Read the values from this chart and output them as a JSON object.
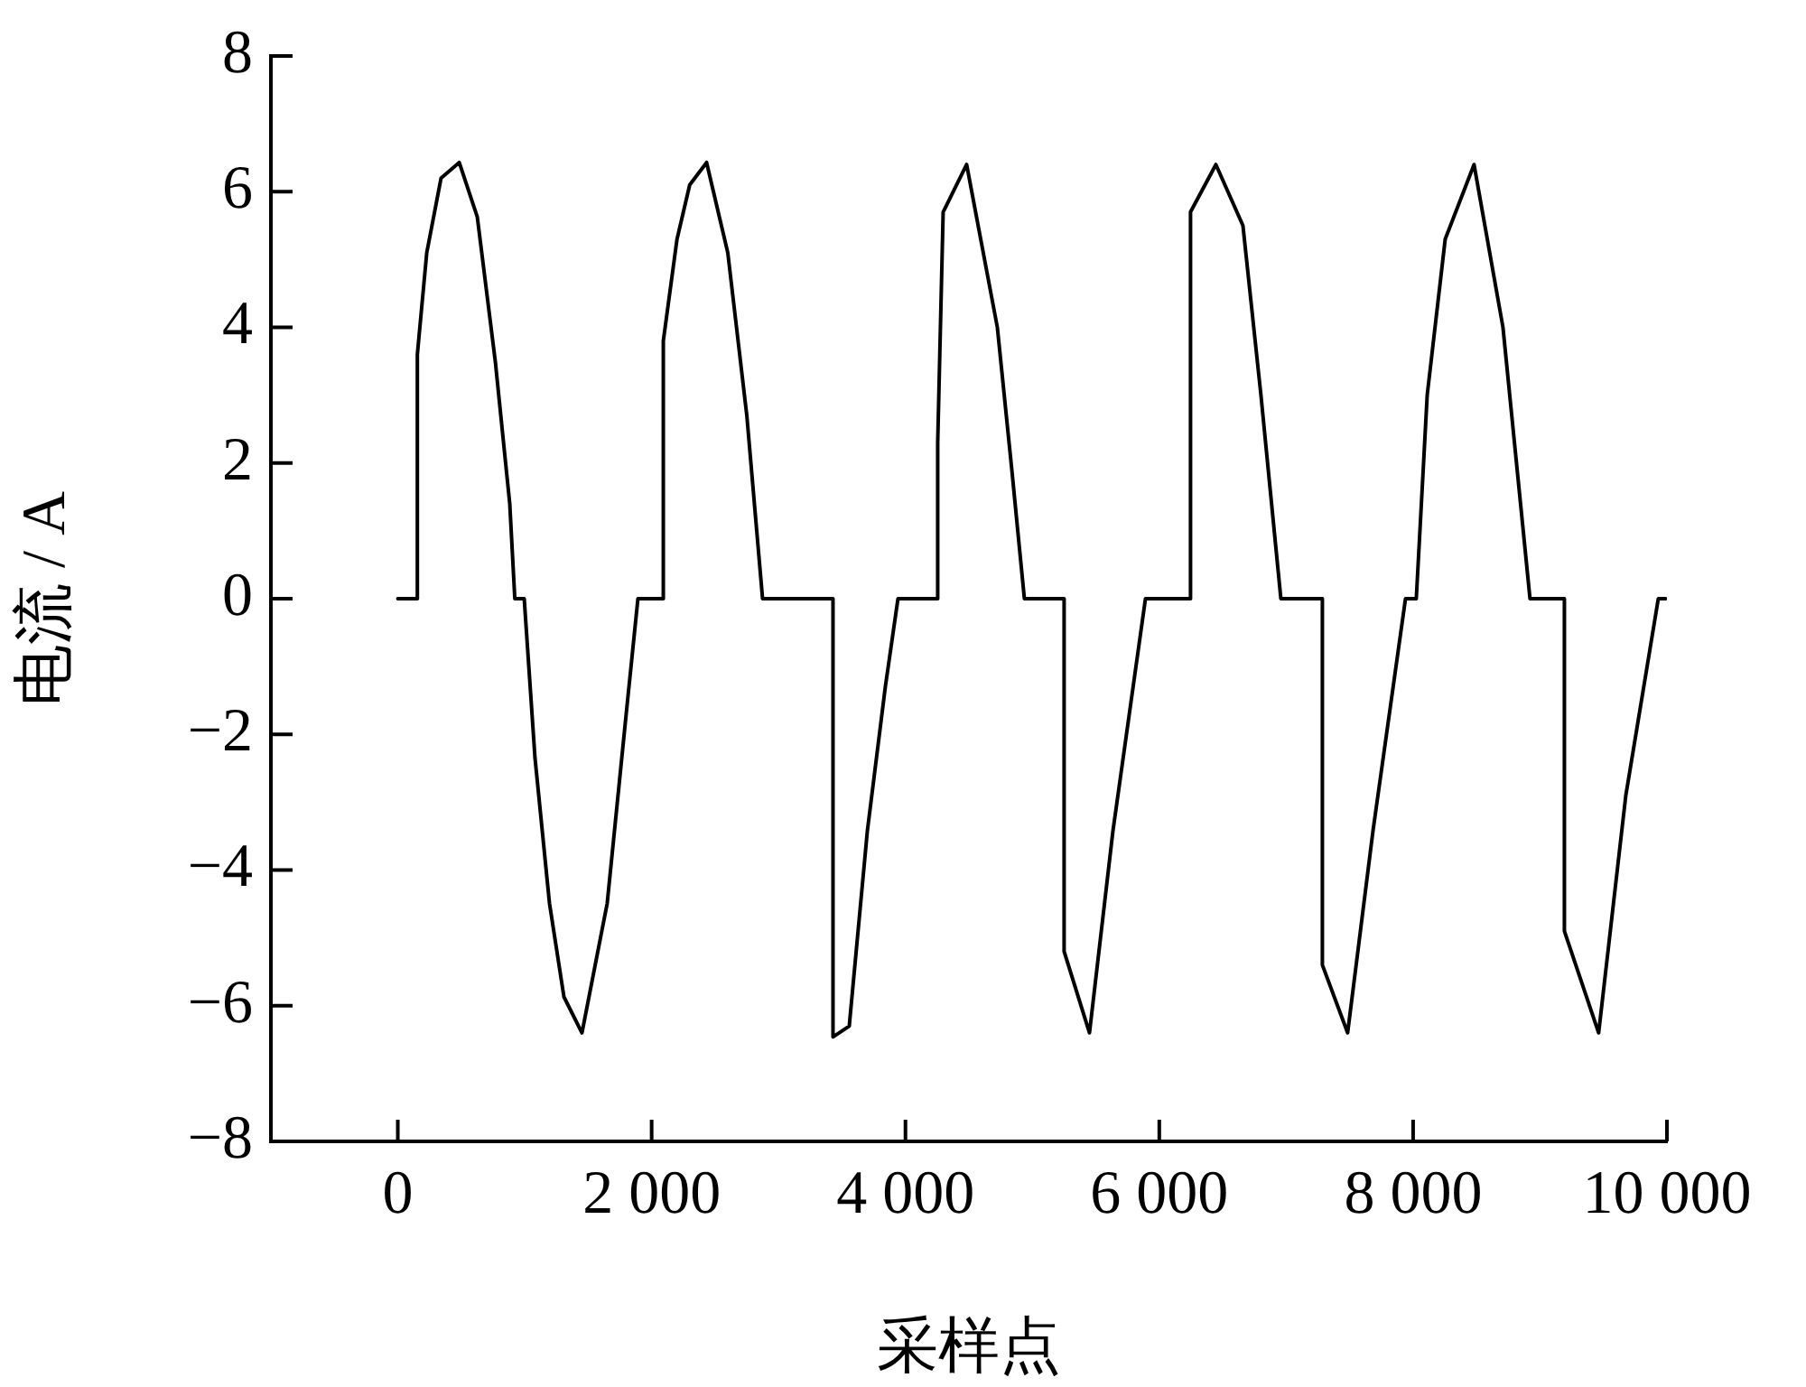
{
  "chart_data": {
    "type": "line",
    "xlabel": "采样点",
    "ylabel": "电流 / A",
    "xlim": [
      -1000,
      10000
    ],
    "xticks": [
      0,
      {
        "value": 2000,
        "label": "2 000"
      },
      {
        "value": 4000,
        "label": "4 000"
      },
      {
        "value": 6000,
        "label": "6 000"
      },
      {
        "value": 8000,
        "label": "8 000"
      },
      {
        "value": 10000,
        "label": "10 000"
      }
    ],
    "ylim": [
      -8,
      8
    ],
    "yticks": [
      {
        "value": -8,
        "label": "−8"
      },
      {
        "value": -6,
        "label": "−6"
      },
      {
        "value": -4,
        "label": "−4"
      },
      {
        "value": -2,
        "label": "−2"
      },
      0,
      2,
      4,
      6,
      8
    ],
    "grid": false,
    "legend": false,
    "marker": "none",
    "line_style": "solid",
    "series": [
      {
        "color": "#000000",
        "x": [
          0,
          154,
          154,
          228,
          341,
          484,
          626,
          768,
          882,
          922,
          996,
          1081,
          1195,
          1309,
          1451,
          1650,
          1793,
          1892,
          2092,
          2092,
          2200,
          2300,
          2433,
          2600,
          2750,
          2874,
          3429,
          3429,
          3557,
          3700,
          3842,
          3941,
          4254,
          4254,
          4297,
          4482,
          4724,
          4838,
          4937,
          5250,
          5250,
          5450,
          5635,
          5891,
          6246,
          6246,
          6446,
          6659,
          6801,
          6958,
          7285,
          7285,
          7484,
          7684,
          7940,
          8025,
          8111,
          8253,
          8480,
          8708,
          8921,
          9192,
          9192,
          9462,
          9676,
          9932,
          9990
        ],
        "values": [
          0,
          0,
          3.6,
          5.1,
          6.2,
          6.43,
          5.63,
          3.5,
          1.4,
          0,
          0,
          -2.35,
          -4.49,
          -5.87,
          -6.4,
          -4.49,
          -1.82,
          0,
          0,
          3.8,
          5.3,
          6.1,
          6.43,
          5.1,
          2.7,
          0,
          0,
          -6.46,
          -6.3,
          -3.42,
          -1.29,
          0,
          0,
          2.3,
          5.7,
          6.4,
          4.0,
          1.9,
          0,
          0,
          -5.2,
          -6.4,
          -3.42,
          0,
          0,
          5.7,
          6.4,
          5.5,
          3.0,
          0,
          0,
          -5.4,
          -6.4,
          -3.42,
          0,
          0,
          3.0,
          5.3,
          6.4,
          4.0,
          0,
          0,
          -4.9,
          -6.4,
          -2.9,
          0,
          0
        ]
      }
    ]
  }
}
